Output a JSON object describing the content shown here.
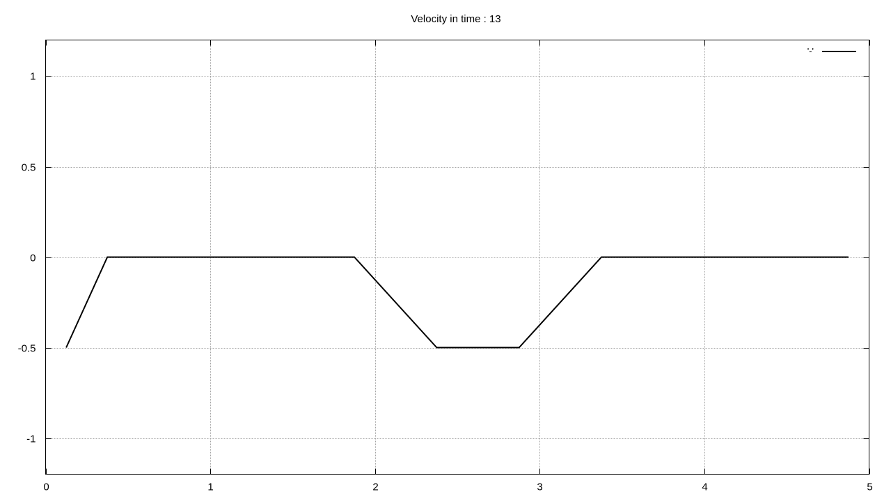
{
  "chart_data": {
    "type": "line",
    "title": "Velocity in time : 13",
    "xlabel": "",
    "ylabel": "",
    "xlim": [
      0,
      5
    ],
    "ylim": [
      -1.2,
      1.2
    ],
    "xticks": [
      0,
      1,
      2,
      3,
      4,
      5
    ],
    "xtick_labels": [
      "0",
      "1",
      "2",
      "3",
      "4",
      "5"
    ],
    "yticks": [
      1,
      0.5,
      0,
      -0.5,
      -1
    ],
    "ytick_labels": [
      "1",
      "0.5",
      "0",
      "-0.5",
      "-1"
    ],
    "grid": true,
    "legend_position": "top-right",
    "series": [
      {
        "name": "'-'",
        "color": "#000000",
        "x": [
          0.125,
          0.375,
          1.875,
          2.375,
          2.875,
          3.375,
          4.875
        ],
        "y": [
          -0.5,
          0,
          0,
          -0.5,
          -0.5,
          0,
          0
        ]
      }
    ]
  }
}
